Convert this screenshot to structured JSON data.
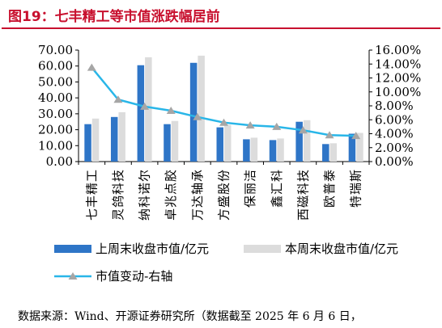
{
  "title": "图19：七丰精工等市值涨跌幅居前",
  "source": "数据来源：Wind、开源证券研究所（数据截至 2025 年 6 月 6 日，",
  "colors": {
    "title": "#c8102e",
    "bar_last": "#2e75c7",
    "bar_this": "#dcdcdc",
    "line": "#29b6e8",
    "marker": "#a6a6a6"
  },
  "chart_data": {
    "type": "bar",
    "categories": [
      "七丰精工",
      "灵鸽科技",
      "纳科诺尔",
      "卓兆点胶",
      "万达轴承",
      "方盛股份",
      "保丽洁",
      "鑫汇科",
      "西磁科技",
      "欧普泰",
      "特瑞斯"
    ],
    "series": [
      {
        "name": "上周末收盘市值/亿元",
        "type": "bar",
        "axis": "left",
        "values": [
          23.5,
          28.0,
          60.5,
          23.5,
          62.0,
          21.5,
          14.0,
          13.5,
          25.0,
          11.0,
          17.5
        ]
      },
      {
        "name": "本周末收盘市值/亿元",
        "type": "bar",
        "axis": "left",
        "values": [
          27.0,
          31.0,
          65.5,
          25.5,
          66.5,
          23.0,
          15.0,
          14.5,
          26.0,
          11.5,
          18.0
        ]
      },
      {
        "name": "市值变动-右轴",
        "type": "line",
        "axis": "right",
        "values": [
          13.5,
          8.9,
          7.9,
          7.3,
          6.4,
          5.6,
          5.2,
          5.0,
          4.5,
          3.8,
          3.7
        ]
      }
    ],
    "y_left": {
      "min": 0,
      "max": 70,
      "step": 10,
      "ticks": [
        "0.00",
        "10.00",
        "20.00",
        "30.00",
        "40.00",
        "50.00",
        "60.00",
        "70.00"
      ]
    },
    "y_right": {
      "min": 0,
      "max": 16,
      "step": 2,
      "ticks": [
        "0.00%",
        "2.00%",
        "4.00%",
        "6.00%",
        "8.00%",
        "10.00%",
        "12.00%",
        "14.00%",
        "16.00%"
      ]
    },
    "legend_position": "bottom",
    "grid": false
  }
}
